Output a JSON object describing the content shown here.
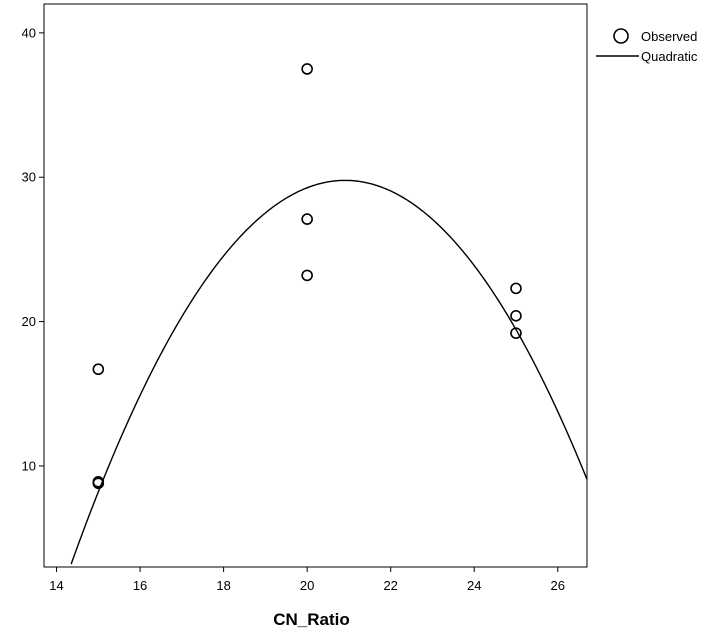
{
  "chart_data": {
    "type": "scatter",
    "title": "",
    "xlabel": "CN_Ratio",
    "ylabel": "",
    "xlim": [
      13.7,
      26.7
    ],
    "ylim": [
      3.0,
      42.0
    ],
    "x_ticks": [
      14,
      16,
      18,
      20,
      22,
      24,
      26
    ],
    "y_ticks": [
      10,
      20,
      30,
      40
    ],
    "grid": false,
    "legend_position": "top-right outside",
    "series": [
      {
        "name": "Observed",
        "kind": "scatter",
        "marker": "open-circle",
        "x": [
          15,
          15,
          15,
          20,
          20,
          20,
          25,
          25,
          25
        ],
        "y": [
          16.7,
          8.9,
          8.8,
          37.5,
          27.1,
          23.2,
          22.3,
          20.4,
          19.2
        ]
      },
      {
        "name": "Quadratic",
        "kind": "line",
        "equation": "y = -0.6178*x^2 + 25.836*x - 240.33",
        "coefficients": {
          "a": -0.6178,
          "b": 25.836,
          "c": -240.33
        }
      }
    ]
  }
}
